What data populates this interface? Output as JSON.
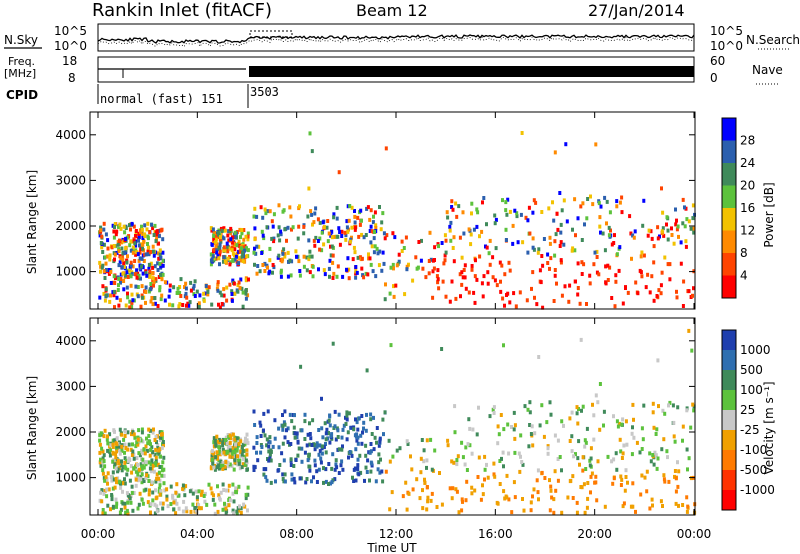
{
  "header": {
    "station": "Rankin Inlet (fitACF)",
    "beam": "Beam 12",
    "date": "27/Jan/2014"
  },
  "colors": {
    "power_scale": [
      "#0000ff",
      "#2b5fae",
      "#3f8a5a",
      "#5cc23c",
      "#f2c200",
      "#ff8a00",
      "#ff4400",
      "#ff0000"
    ],
    "velocity_scale": [
      "#1f3fae",
      "#2f6fb0",
      "#3f8a5a",
      "#5cc23c",
      "#c8c8c8",
      "#f0a000",
      "#ff7a00",
      "#ff3300",
      "#ff0000"
    ]
  },
  "chart_data": [
    {
      "type": "line",
      "panel": "noise",
      "left_label": "N.Sky",
      "right_label": "N.Search",
      "left_ticks": [
        "10^5",
        "10^0"
      ],
      "right_ticks": [
        "10^5",
        "10^0"
      ]
    },
    {
      "type": "line",
      "panel": "frequency",
      "left_label_line1": "Freq.",
      "left_label_line2": "[MHz]",
      "right_label": "Nave",
      "left_ticks": [
        "18",
        "8"
      ],
      "right_ticks": [
        "60",
        "0"
      ],
      "cpid_label": "CPID",
      "cpid_segments": [
        {
          "start_hour": 0,
          "label": "normal (fast) 151"
        },
        {
          "start_hour": 6.1,
          "label": "3503"
        }
      ]
    },
    {
      "type": "heatmap",
      "panel": "power",
      "ylabel": "Slant Range [km]",
      "yticks": [
        "4000",
        "3000",
        "2000",
        "1000"
      ],
      "colorbar_label": "Power [dB]",
      "colorbar_ticks": [
        "28",
        "24",
        "20",
        "16",
        "12",
        "8",
        "4"
      ],
      "ylim": [
        180,
        4500
      ]
    },
    {
      "type": "heatmap",
      "panel": "velocity",
      "ylabel": "Slant Range [km]",
      "yticks": [
        "4000",
        "3000",
        "2000",
        "1000"
      ],
      "colorbar_label": "Velocity [m s⁻¹]",
      "colorbar_ticks": [
        "1000",
        "500",
        "100",
        "25",
        "-25",
        "-100",
        "-500",
        "-1000"
      ],
      "ylim": [
        180,
        4500
      ]
    }
  ],
  "xaxis": {
    "ticks": [
      "00:00",
      "04:00",
      "08:00",
      "12:00",
      "16:00",
      "20:00",
      "00:00"
    ],
    "label": "Time UT"
  }
}
